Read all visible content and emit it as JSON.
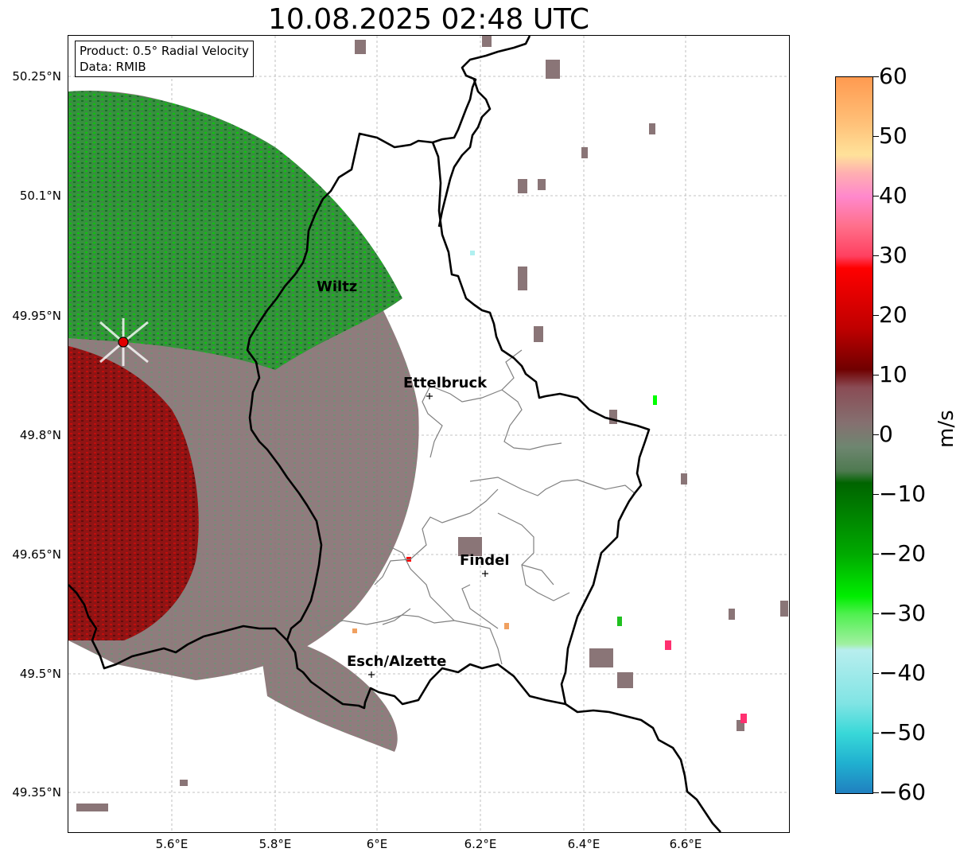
{
  "title": "10.08.2025 02:48 UTC",
  "info": {
    "product": "Product: 0.5° Radial Velocity",
    "source": "Data: RMIB"
  },
  "lat_ticks": [
    "50.25°N",
    "50.1°N",
    "49.95°N",
    "49.8°N",
    "49.65°N",
    "49.5°N",
    "49.35°N"
  ],
  "lon_ticks": [
    "5.6°E",
    "5.8°E",
    "6°E",
    "6.2°E",
    "6.4°E",
    "6.6°E"
  ],
  "cities": [
    {
      "name": "Wiltz",
      "lat": 49.97,
      "lon": 5.93
    },
    {
      "name": "Ettelbruck",
      "lat": 49.85,
      "lon": 6.1
    },
    {
      "name": "Findel",
      "lat": 49.63,
      "lon": 6.21
    },
    {
      "name": "Esch/Alzette",
      "lat": 49.5,
      "lon": 5.99
    }
  ],
  "radar_site": {
    "lat": 49.915,
    "lon": 5.505,
    "marker_color": "#e00000"
  },
  "colorbar": {
    "label": "m/s",
    "min": -60,
    "max": 60,
    "ticks": [
      "60",
      "50",
      "40",
      "30",
      "20",
      "10",
      "0",
      "−10",
      "−20",
      "−30",
      "−40",
      "−50",
      "−60"
    ],
    "stops": [
      {
        "v": 60,
        "c": "#ff9a50"
      },
      {
        "v": 52,
        "c": "#ffc27a"
      },
      {
        "v": 47,
        "c": "#ffe29a"
      },
      {
        "v": 44,
        "c": "#ffb0b0"
      },
      {
        "v": 40,
        "c": "#ff88cc"
      },
      {
        "v": 35,
        "c": "#ff6f8a"
      },
      {
        "v": 30,
        "c": "#ff4060"
      },
      {
        "v": 28,
        "c": "#ff0000"
      },
      {
        "v": 18,
        "c": "#c00000"
      },
      {
        "v": 11,
        "c": "#700000"
      },
      {
        "v": 8,
        "c": "#8a4c55"
      },
      {
        "v": 2,
        "c": "#857070"
      },
      {
        "v": -2,
        "c": "#6e8670"
      },
      {
        "v": -6,
        "c": "#4e7a50"
      },
      {
        "v": -8,
        "c": "#006400"
      },
      {
        "v": -20,
        "c": "#00aa00"
      },
      {
        "v": -27,
        "c": "#00ee00"
      },
      {
        "v": -30,
        "c": "#50f050"
      },
      {
        "v": -35,
        "c": "#a0f0a0"
      },
      {
        "v": -36,
        "c": "#b8eeee"
      },
      {
        "v": -45,
        "c": "#80e4e4"
      },
      {
        "v": -50,
        "c": "#38d8d8"
      },
      {
        "v": -55,
        "c": "#20b0d0"
      },
      {
        "v": -60,
        "c": "#2080c0"
      }
    ]
  },
  "map_extent": {
    "lon_min": 5.4,
    "lon_max": 6.79,
    "lat_min": 49.3,
    "lat_max": 50.3
  },
  "colors": {
    "border": "#000000",
    "canton_line": "#808080",
    "grid": "#b0b0b0",
    "inbound": "#00a000",
    "outbound": "#b00000",
    "zero": "#857274"
  }
}
